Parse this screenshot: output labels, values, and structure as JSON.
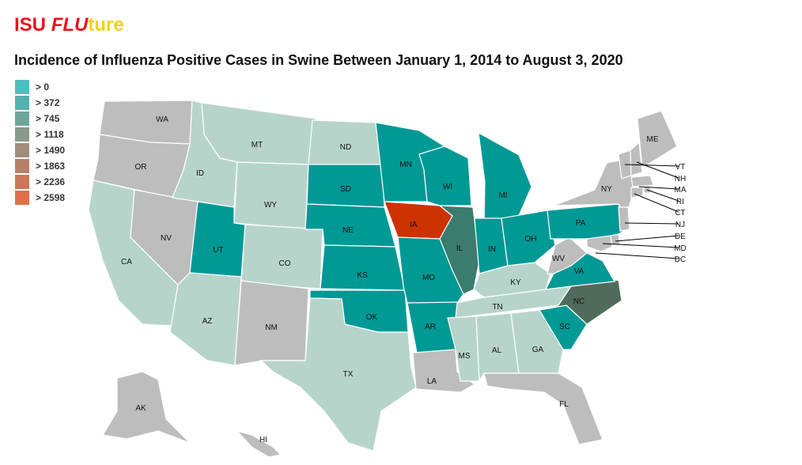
{
  "brand": {
    "part1": "ISU ",
    "part2": "FLU",
    "part3": "ture"
  },
  "title": "Incidence of Influenza Positive Cases in Swine Between January 1, 2014 to August 3, 2020",
  "legend": [
    {
      "label": "> 0",
      "color": "#4bbfbf"
    },
    {
      "label": "> 372",
      "color": "#55b0ae"
    },
    {
      "label": "> 745",
      "color": "#6fa59b"
    },
    {
      "label": "> 1118",
      "color": "#879a8b"
    },
    {
      "label": "> 1490",
      "color": "#a08d7c"
    },
    {
      "label": "> 1863",
      "color": "#b7806b"
    },
    {
      "label": "> 2236",
      "color": "#cc765a"
    },
    {
      "label": "> 2598",
      "color": "#e0704c"
    }
  ],
  "fill_colors": {
    "none": "#bdbdbd",
    "low": "#b7d4cb",
    "teal": "#009995",
    "il": "#3b7c6e",
    "nc": "#4f6b5b",
    "ia": "#cc3300"
  },
  "states": [
    {
      "id": "WA",
      "fill": "none"
    },
    {
      "id": "OR",
      "fill": "none"
    },
    {
      "id": "CA",
      "fill": "low"
    },
    {
      "id": "NV",
      "fill": "none"
    },
    {
      "id": "ID",
      "fill": "low"
    },
    {
      "id": "MT",
      "fill": "low"
    },
    {
      "id": "WY",
      "fill": "low"
    },
    {
      "id": "UT",
      "fill": "teal"
    },
    {
      "id": "CO",
      "fill": "low"
    },
    {
      "id": "AZ",
      "fill": "low"
    },
    {
      "id": "NM",
      "fill": "none"
    },
    {
      "id": "ND",
      "fill": "low"
    },
    {
      "id": "SD",
      "fill": "teal"
    },
    {
      "id": "NE",
      "fill": "teal"
    },
    {
      "id": "KS",
      "fill": "teal"
    },
    {
      "id": "OK",
      "fill": "teal"
    },
    {
      "id": "TX",
      "fill": "low"
    },
    {
      "id": "MN",
      "fill": "teal"
    },
    {
      "id": "IA",
      "fill": "ia"
    },
    {
      "id": "MO",
      "fill": "teal"
    },
    {
      "id": "AR",
      "fill": "teal"
    },
    {
      "id": "LA",
      "fill": "none"
    },
    {
      "id": "WI",
      "fill": "teal"
    },
    {
      "id": "IL",
      "fill": "il"
    },
    {
      "id": "MI",
      "fill": "teal"
    },
    {
      "id": "IN",
      "fill": "teal"
    },
    {
      "id": "OH",
      "fill": "teal"
    },
    {
      "id": "KY",
      "fill": "low"
    },
    {
      "id": "TN",
      "fill": "low"
    },
    {
      "id": "MS",
      "fill": "low"
    },
    {
      "id": "AL",
      "fill": "low"
    },
    {
      "id": "GA",
      "fill": "low"
    },
    {
      "id": "FL",
      "fill": "none"
    },
    {
      "id": "SC",
      "fill": "teal"
    },
    {
      "id": "NC",
      "fill": "nc"
    },
    {
      "id": "VA",
      "fill": "teal"
    },
    {
      "id": "WV",
      "fill": "none"
    },
    {
      "id": "PA",
      "fill": "teal"
    },
    {
      "id": "NY",
      "fill": "none"
    },
    {
      "id": "ME",
      "fill": "none"
    },
    {
      "id": "VT",
      "fill": "none"
    },
    {
      "id": "NH",
      "fill": "none"
    },
    {
      "id": "MA",
      "fill": "none"
    },
    {
      "id": "RI",
      "fill": "none"
    },
    {
      "id": "CT",
      "fill": "none"
    },
    {
      "id": "NJ",
      "fill": "none"
    },
    {
      "id": "DE",
      "fill": "none"
    },
    {
      "id": "MD",
      "fill": "none"
    },
    {
      "id": "DC",
      "fill": "none"
    },
    {
      "id": "AK",
      "fill": "none"
    },
    {
      "id": "HI",
      "fill": "none"
    }
  ]
}
